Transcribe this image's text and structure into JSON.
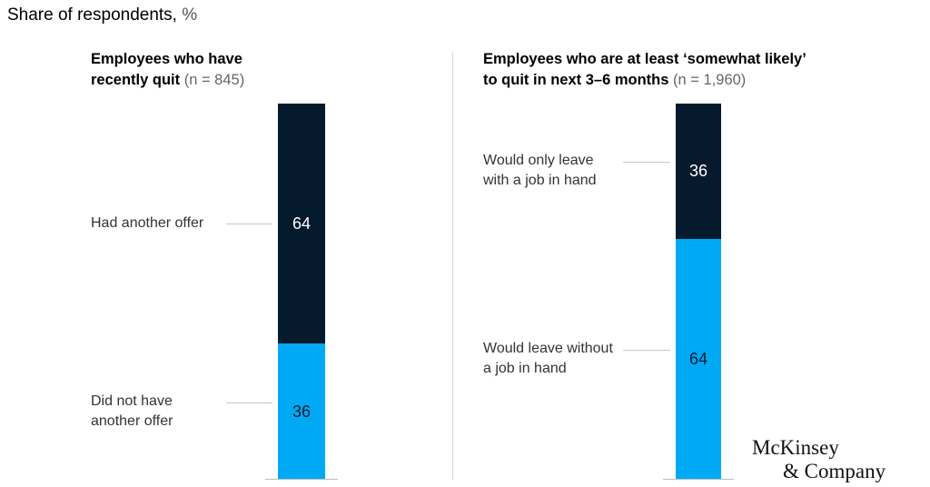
{
  "header": {
    "title": "Share of respondents,",
    "unit": "%"
  },
  "chart_data": [
    {
      "type": "bar",
      "title_line1": "Employees who have",
      "title_line2": "recently quit",
      "sample_note": "(n = 845)",
      "segments": [
        {
          "label_line1": "Had another offer",
          "label_line2": "",
          "value": 64,
          "color": "#061a2e",
          "text_color": "#ffffff"
        },
        {
          "label_line1": "Did not have",
          "label_line2": "another offer",
          "value": 36,
          "color": "#00a9f4",
          "text_color": "#061a2e"
        }
      ]
    },
    {
      "type": "bar",
      "title_line1": "Employees who are at least ‘somewhat likely’",
      "title_line2": "to quit in next 3–6 months",
      "sample_note": "(n = 1,960)",
      "segments": [
        {
          "label_line1": "Would only leave",
          "label_line2": "with a job in hand",
          "value": 36,
          "color": "#061a2e",
          "text_color": "#ffffff"
        },
        {
          "label_line1": "Would leave without",
          "label_line2": "a job in hand",
          "value": 64,
          "color": "#00a9f4",
          "text_color": "#061a2e"
        }
      ]
    }
  ],
  "branding": {
    "line1": "McKinsey",
    "line2": "& Company"
  }
}
